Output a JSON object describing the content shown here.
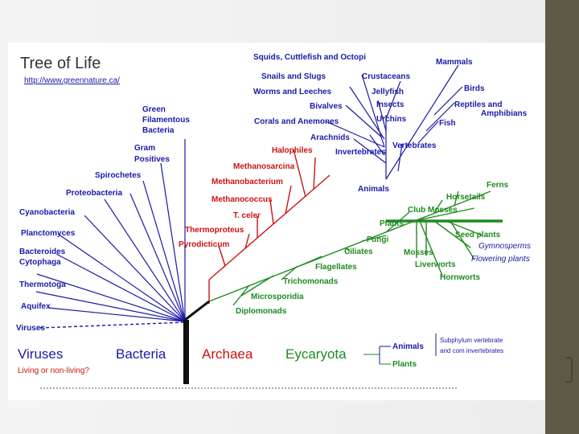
{
  "slide": {
    "page_number": "6",
    "colors": {
      "side_bar": "#5d5a45",
      "blue": "#1a1aa6",
      "red": "#cc1111",
      "green": "#1f8a1f"
    }
  },
  "diagram": {
    "title": "Tree of Life",
    "url": "http://www.greennature.ca/",
    "bacteria": [
      "Green",
      "Filamentous",
      "Bacteria",
      "Gram",
      "Positives",
      "Spirochetes",
      "Proteobacteria",
      "Cyanobacteria",
      "Planctomyces",
      "Bacteroides",
      "Cytophaga",
      "Thermotoga",
      "Aquifex"
    ],
    "viruses_label": "Viruses",
    "archaea": [
      "Halophiles",
      "Methanosarcina",
      "Methanobacterium",
      "Methanococcus",
      "T. celer",
      "Thermoproteus",
      "Pyrodicticum"
    ],
    "animals_top": [
      "Squids, Cuttlefish and Octopi",
      "Mammals",
      "Snails and Slugs",
      "Crustaceans",
      "Worms and Leeches",
      "Jellyfish",
      "Birds",
      "Bivalves",
      "Insects",
      "Reptiles and",
      "Amphibians",
      "Corals and Anemones",
      "Urchins",
      "Fish",
      "Arachnids",
      "Vertebrates",
      "Invertebrates",
      "Animals"
    ],
    "plants": [
      "Ferns",
      "Horsetails",
      "Club Mosses",
      "Plants",
      "Seed plants",
      "Gymnosperms",
      "Flowering plants",
      "Mosses",
      "Liverworts",
      "Hornworts"
    ],
    "eukaryote_others": [
      "Fungi",
      "Ciliates",
      "Flagellates",
      "Trichomonads",
      "Microsporidia",
      "Diplomonads"
    ],
    "domains": {
      "viruses": "Viruses",
      "viruses_sub": "Living or non-living?",
      "bacteria": "Bacteria",
      "archaea": "Archaea",
      "eukaryota": "Eycaryota"
    },
    "legend": {
      "animals": "Animals",
      "plants": "Plants",
      "subphylum_1": "Subphylum vertebrate",
      "subphylum_2": "and com invertebrates"
    }
  }
}
